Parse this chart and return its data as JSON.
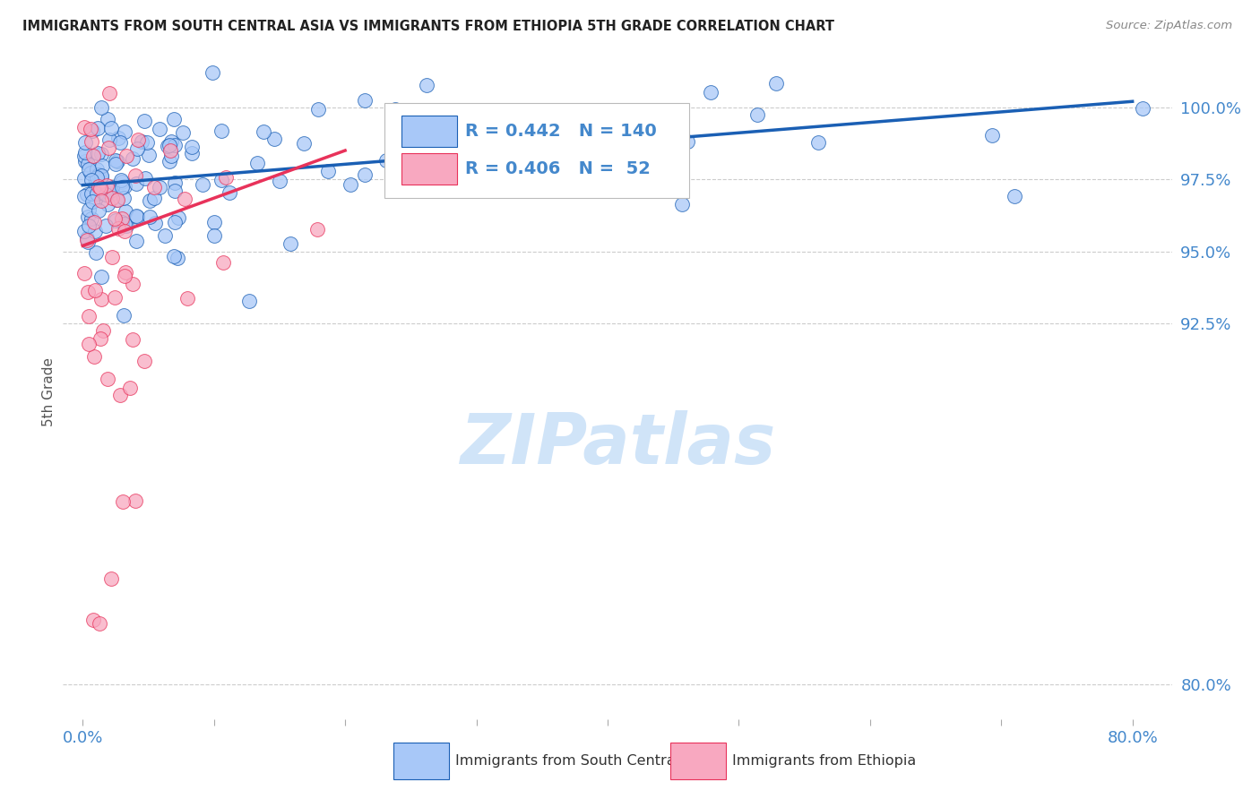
{
  "title": "IMMIGRANTS FROM SOUTH CENTRAL ASIA VS IMMIGRANTS FROM ETHIOPIA 5TH GRADE CORRELATION CHART",
  "source": "Source: ZipAtlas.com",
  "xlabel_blue": "Immigrants from South Central Asia",
  "xlabel_pink": "Immigrants from Ethiopia",
  "ylabel": "5th Grade",
  "xmin": 0.0,
  "xmax": 80.0,
  "ymin": 80.0,
  "ymax": 101.5,
  "yticks": [
    80.0,
    92.5,
    95.0,
    97.5,
    100.0
  ],
  "ytick_labels": [
    "80.0%",
    "92.5%",
    "95.0%",
    "97.5%",
    "100.0%"
  ],
  "xticks": [
    0.0,
    10.0,
    20.0,
    30.0,
    40.0,
    50.0,
    60.0,
    70.0,
    80.0
  ],
  "xtick_labels": [
    "0.0%",
    "",
    "",
    "",
    "",
    "",
    "",
    "",
    "80.0%"
  ],
  "r_blue": 0.442,
  "n_blue": 140,
  "r_pink": 0.406,
  "n_pink": 52,
  "color_blue": "#A8C8F8",
  "color_pink": "#F8A8C0",
  "line_color_blue": "#1A5FB4",
  "line_color_pink": "#E8325A",
  "title_color": "#333333",
  "axis_color": "#4488CC",
  "watermark_color": "#D0E4F8",
  "blue_trend_x0": 0.0,
  "blue_trend_y0": 97.3,
  "blue_trend_x1": 80.0,
  "blue_trend_y1": 100.2,
  "pink_trend_x0": 0.0,
  "pink_trend_y0": 95.2,
  "pink_trend_x1": 20.0,
  "pink_trend_y1": 98.5
}
